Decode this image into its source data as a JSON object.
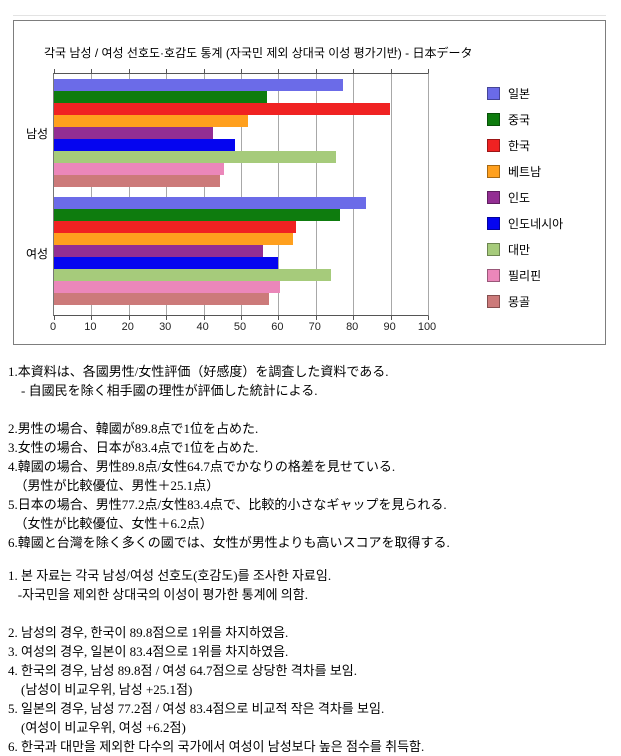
{
  "chart_data": {
    "type": "bar",
    "orientation": "horizontal",
    "title": "각국 남성 / 여성 선호도·호감도 통계 (자국민 제외 상대국 이성 평가기반) - 日本データ",
    "categories": [
      "남성",
      "여성"
    ],
    "series": [
      {
        "name": "일본",
        "color": "#6b6be8",
        "values": [
          77.2,
          83.4
        ]
      },
      {
        "name": "중국",
        "color": "#0e7c0e",
        "values": [
          57,
          76.5
        ]
      },
      {
        "name": "한국",
        "color": "#f02222",
        "values": [
          89.8,
          64.7
        ]
      },
      {
        "name": "베트남",
        "color": "#ffa01e",
        "values": [
          52,
          64
        ]
      },
      {
        "name": "인도",
        "color": "#932e93",
        "values": [
          42.5,
          56
        ]
      },
      {
        "name": "인도네시아",
        "color": "#0505f0",
        "values": [
          48.5,
          60
        ]
      },
      {
        "name": "대만",
        "color": "#a6cb7b",
        "values": [
          75.5,
          74
        ]
      },
      {
        "name": "필리핀",
        "color": "#eb87ba",
        "values": [
          45.5,
          60.5
        ]
      },
      {
        "name": "몽골",
        "color": "#cc7a7a",
        "values": [
          44.5,
          57.5
        ]
      }
    ],
    "xlim": [
      0,
      100
    ],
    "x_ticks": [
      0,
      10,
      20,
      30,
      40,
      50,
      60,
      70,
      80,
      90,
      100
    ],
    "grid": true,
    "legend_position": "right",
    "colors": {
      "frame_border": "#7d7d7d",
      "grid": "#a8a8a8",
      "axis": "#555555",
      "tick_label": "#222222"
    }
  },
  "notes_ja": {
    "lines": [
      "1.本資料は、各國男性/女性評価（好感度）を調査した資料である.",
      "　- 自國民を除く相手國の理性が評価した統計による.",
      "",
      "2.男性の場合、韓國が89.8点で1位を占めた.",
      "3.女性の場合、日本が83.4点で1位を占めた.",
      "4.韓國の場合、男性89.8点/女性64.7点でかなりの格差を見せている.",
      "　（男性が比較優位、男性＋25.1点）",
      "5.日本の場合、男性77.2点/女性83.4点で、比較的小さなギャップを見られる.",
      "　（女性が比較優位、女性＋6.2点）",
      "6.韓國と台灣を除く多くの國では、女性が男性よりも高いスコアを取得する."
    ]
  },
  "notes_ko": {
    "lines": [
      "1. 본 자료는 각국 남성/여성 선호도(호감도)를 조사한 자료임.",
      "   -자국민을 제외한 상대국의 이성이 평가한 통계에 의함.",
      "",
      "2. 남성의 경우, 한국이 89.8점으로 1위를 차지하였음.",
      "3. 여성의 경우, 일본이 83.4점으로 1위를 차지하였음.",
      "4. 한국의 경우, 남성 89.8점 / 여성 64.7점으로 상당한 격차를 보임.",
      "    (남성이 비교우위, 남성 +25.1점)",
      "5. 일본의 경우, 남성 77.2점 / 여성 83.4점으로 비교적 작은 격차를 보임.",
      "    (여성이 비교우위, 여성 +6.2점)",
      "6. 한국과 대만을 제외한 다수의 국가에서 여성이 남성보다 높은 점수를 취득함."
    ]
  }
}
